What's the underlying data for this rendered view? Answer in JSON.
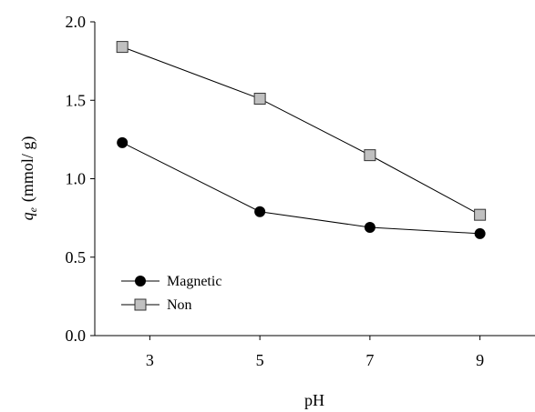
{
  "chart_data": {
    "type": "line",
    "xlabel": "pH",
    "ylabel": {
      "main": "q",
      "subscript": "e",
      "unit": "(mmol/ g)"
    },
    "xlim": [
      2,
      10
    ],
    "ylim": [
      0,
      2.0
    ],
    "x_ticks": [
      3,
      5,
      7,
      9
    ],
    "y_ticks": [
      0.0,
      0.5,
      1.0,
      1.5,
      2.0
    ],
    "x_tick_labels": [
      "3",
      "5",
      "7",
      "9"
    ],
    "y_tick_labels": [
      "0.0",
      "0.5",
      "1.0",
      "1.5",
      "2.0"
    ],
    "grid": false,
    "legend_placement": "bottom-left",
    "series": [
      {
        "name": "Magnetic",
        "marker": "circle",
        "color": "#000000",
        "x": [
          2.5,
          5,
          7,
          9
        ],
        "y": [
          1.23,
          0.79,
          0.69,
          0.65
        ]
      },
      {
        "name": "Non",
        "marker": "square",
        "color": "#c0c0c0",
        "x": [
          2.5,
          5,
          7,
          9
        ],
        "y": [
          1.84,
          1.51,
          1.15,
          0.77
        ]
      }
    ]
  }
}
